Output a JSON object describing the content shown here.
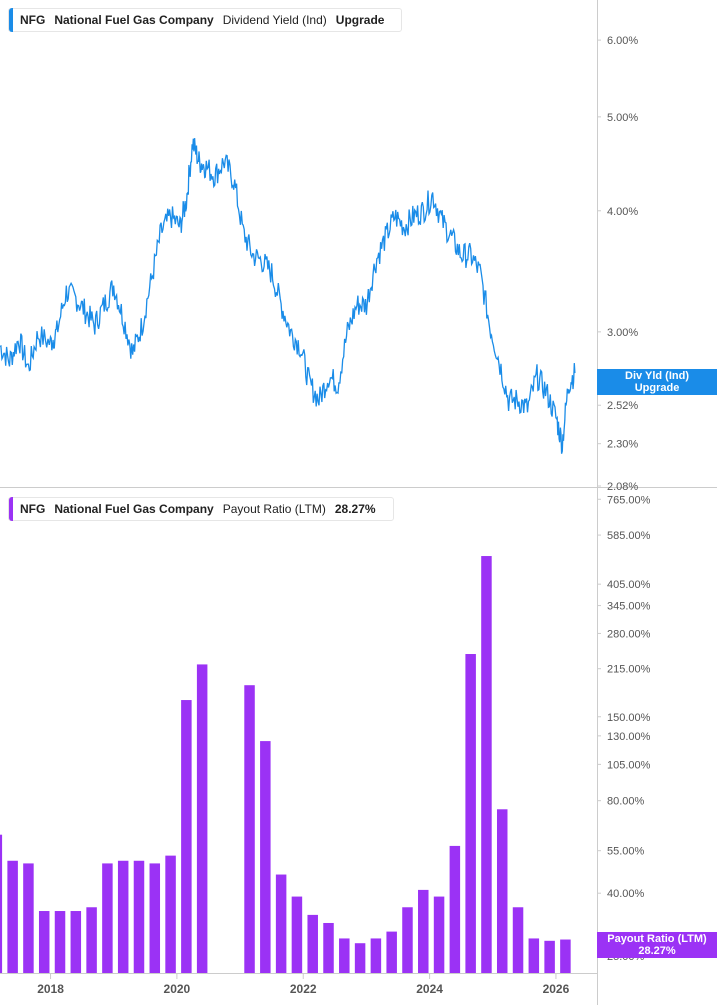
{
  "colors": {
    "line": "#1a8ce8",
    "bar": "#9b32f5",
    "axis": "#cccccc",
    "text": "#555555"
  },
  "top_legend": {
    "ticker": "NFG",
    "company": "National Fuel Gas Company",
    "metric": "Dividend Yield (Ind)",
    "action": "Upgrade"
  },
  "top_tag": {
    "line1": "Div Yld (Ind)",
    "line2": "Upgrade"
  },
  "bottom_legend": {
    "ticker": "NFG",
    "company": "National Fuel Gas Company",
    "metric": "Payout Ratio (LTM)",
    "value": "28.27%"
  },
  "bottom_tag": {
    "line1": "Payout Ratio (LTM)",
    "line2": "28.27%"
  },
  "chart_data": [
    {
      "type": "line",
      "scale": "log",
      "y_ticks": [
        "6.00%",
        "5.00%",
        "4.00%",
        "3.00%",
        "2.52%",
        "2.30%",
        "2.08%"
      ],
      "y_tick_values": [
        6.0,
        5.0,
        4.0,
        3.0,
        2.52,
        2.3,
        2.08
      ],
      "ylim": [
        2.08,
        6.6
      ],
      "x_ticks": [
        "2018",
        "2020",
        "2022",
        "2024",
        "2026"
      ],
      "xlim": [
        2017.2,
        2026.65
      ],
      "series": [
        {
          "x": [
            2017.2,
            2017.35,
            2017.5,
            2017.65,
            2017.8,
            2018.0,
            2018.1,
            2018.25,
            2018.4,
            2018.55,
            2018.7,
            2018.85,
            2019.0,
            2019.15,
            2019.3,
            2019.45,
            2019.6,
            2019.75,
            2019.9,
            2020.05,
            2020.15,
            2020.25,
            2020.35,
            2020.45,
            2020.6,
            2020.75,
            2020.9,
            2021.05,
            2021.2,
            2021.35,
            2021.5,
            2021.65,
            2021.8,
            2021.95,
            2022.1,
            2022.25,
            2022.4,
            2022.55,
            2022.7,
            2022.85,
            2023.0,
            2023.15,
            2023.3,
            2023.45,
            2023.6,
            2023.75,
            2023.9,
            2024.05,
            2024.2,
            2024.35,
            2024.5,
            2024.65,
            2024.8,
            2024.95,
            2025.1,
            2025.25,
            2025.4,
            2025.55,
            2025.7,
            2025.85,
            2026.0,
            2026.1,
            2026.2,
            2026.3
          ],
          "y": [
            2.9,
            2.8,
            2.95,
            2.75,
            2.98,
            2.92,
            3.0,
            3.3,
            3.25,
            3.15,
            3.05,
            3.2,
            3.35,
            3.1,
            2.85,
            3.05,
            3.4,
            3.8,
            3.95,
            3.85,
            4.1,
            4.7,
            4.5,
            4.45,
            4.35,
            4.5,
            4.3,
            3.8,
            3.6,
            3.55,
            3.45,
            3.2,
            3.0,
            2.9,
            2.65,
            2.55,
            2.7,
            2.65,
            3.0,
            3.2,
            3.2,
            3.55,
            3.75,
            3.95,
            3.85,
            3.95,
            4.0,
            4.15,
            3.9,
            3.75,
            3.6,
            3.6,
            3.45,
            3.05,
            2.8,
            2.55,
            2.55,
            2.5,
            2.7,
            2.6,
            2.45,
            2.3,
            2.65,
            2.72
          ]
        }
      ]
    },
    {
      "type": "bar",
      "scale": "log",
      "y_ticks": [
        "765.00%",
        "585.00%",
        "405.00%",
        "345.00%",
        "280.00%",
        "215.00%",
        "150.00%",
        "130.00%",
        "105.00%",
        "80.00%",
        "55.00%",
        "40.00%",
        "25.00%"
      ],
      "y_tick_values": [
        765,
        585,
        405,
        345,
        280,
        215,
        150,
        130,
        105,
        80,
        55,
        40,
        25
      ],
      "ylim": [
        22,
        820
      ],
      "x_ticks": [
        "2018",
        "2020",
        "2022",
        "2024",
        "2026"
      ],
      "xlim": [
        2017.2,
        2026.65
      ],
      "series": [
        {
          "name": "Payout Ratio (LTM)",
          "x": [
            2017.15,
            2017.4,
            2017.65,
            2017.9,
            2018.15,
            2018.4,
            2018.65,
            2018.9,
            2019.15,
            2019.4,
            2019.65,
            2019.9,
            2020.15,
            2020.4,
            2021.15,
            2021.4,
            2021.65,
            2021.9,
            2022.15,
            2022.4,
            2022.65,
            2022.9,
            2023.15,
            2023.4,
            2023.65,
            2023.9,
            2024.15,
            2024.4,
            2024.65,
            2024.9,
            2025.15,
            2025.4,
            2025.65,
            2025.9,
            2026.15
          ],
          "values": [
            62,
            51,
            50,
            35,
            35,
            35,
            36,
            50,
            51,
            51,
            50,
            53,
            170,
            222,
            190,
            125,
            46,
            39,
            34,
            32,
            28.5,
            27.5,
            28.5,
            30,
            36,
            41,
            39,
            57,
            240,
            500,
            75,
            36,
            28.5,
            28,
            28.27
          ]
        }
      ]
    }
  ]
}
